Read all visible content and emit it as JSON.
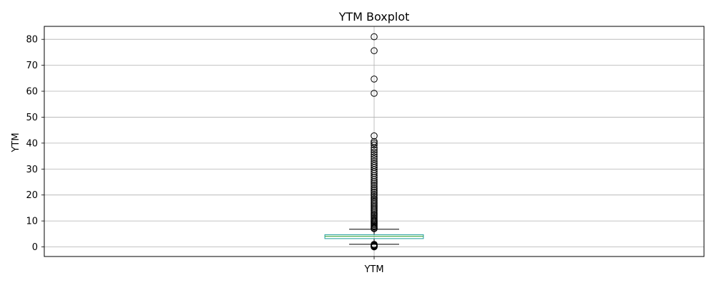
{
  "chart_data": {
    "type": "box",
    "title": "YTM Boxplot",
    "xlabel": "",
    "ylabel": "YTM",
    "categories": [
      "YTM"
    ],
    "ylim": [
      -3.7,
      85
    ],
    "yticks": [
      0,
      10,
      20,
      30,
      40,
      50,
      60,
      70,
      80
    ],
    "grid": true,
    "colors": {
      "box": "#1f9e9e",
      "median": "#2ca02c",
      "whisker": "#000000",
      "grid": "#b0b0b0"
    },
    "box": {
      "whisker_low": 1.0,
      "q1": 3.2,
      "median": 4.1,
      "q3": 4.7,
      "whisker_high": 6.8
    },
    "outliers_high": [
      81.0,
      75.6,
      64.7,
      59.2,
      42.8,
      40.6,
      40.0,
      39.3,
      38.2,
      37.4,
      36.5,
      35.6,
      34.7,
      33.9,
      33.0,
      32.2,
      31.4,
      30.6,
      29.8,
      29.0,
      28.3,
      27.5,
      26.8,
      26.0,
      25.3,
      24.6,
      23.9,
      23.2,
      22.5,
      21.8,
      21.1,
      20.4,
      19.8,
      19.1,
      18.5,
      17.9,
      17.3,
      16.7,
      16.1,
      15.5,
      14.9,
      14.3,
      13.8,
      13.2,
      12.7,
      12.2,
      11.7,
      11.2,
      10.7,
      10.2,
      9.8,
      9.3,
      8.9,
      8.5,
      8.1,
      7.7,
      7.3,
      7.0
    ],
    "outliers_low": [
      1.0,
      0.7,
      0.5,
      0.3,
      0.1,
      0.0
    ]
  }
}
